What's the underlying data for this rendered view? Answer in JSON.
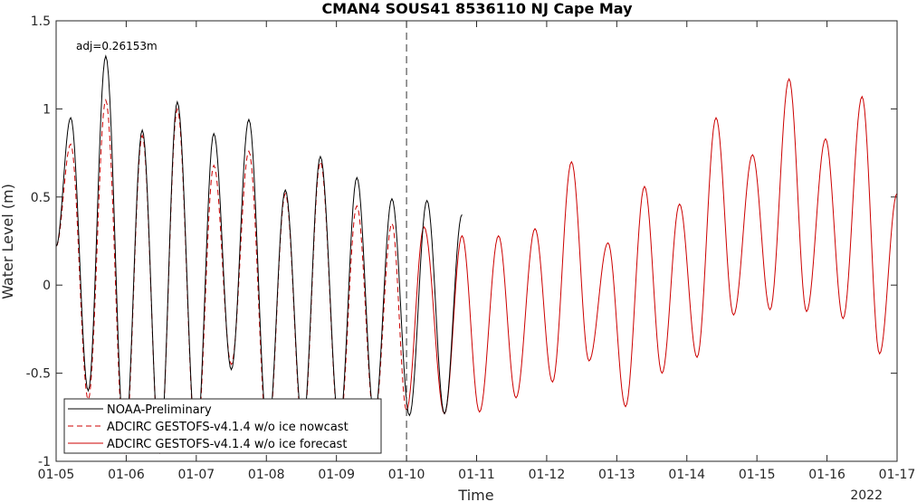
{
  "chart_data": {
    "type": "line",
    "title": "CMAN4 SOUS41 8536110 NJ Cape May",
    "xlabel": "Time",
    "ylabel": "Water Level (m)",
    "year_label": "2022",
    "x_tick_labels": [
      "01-05",
      "01-06",
      "01-07",
      "01-08",
      "01-09",
      "01-10",
      "01-11",
      "01-12",
      "01-13",
      "01-14",
      "01-15",
      "01-16",
      "01-17"
    ],
    "y_tick_labels": [
      "-1",
      "-0.5",
      "0",
      "0.5",
      "1",
      "1.5"
    ],
    "y_ticks": [
      -1,
      -0.5,
      0,
      0.5,
      1,
      1.5
    ],
    "xlim": [
      "2022-01-05",
      "2022-01-17"
    ],
    "ylim": [
      -1,
      1.5
    ],
    "grid": false,
    "legend_position": "bottom-left",
    "annotation": "adj=0.26153m",
    "nowcast_forecast_divider": "2022-01-10",
    "series": [
      {
        "name": "NOAA-Preliminary",
        "color": "#000000",
        "style": "solid",
        "extrema": [
          [
            "2022-01-05 00:00",
            0.22
          ],
          [
            "2022-01-05 05:00",
            0.95
          ],
          [
            "2022-01-05 11:00",
            -0.6
          ],
          [
            "2022-01-05 17:00",
            1.3
          ],
          [
            "2022-01-05 23:30",
            -0.9
          ],
          [
            "2022-01-06 05:30",
            0.88
          ],
          [
            "2022-01-06 11:30",
            -0.95
          ],
          [
            "2022-01-06 17:30",
            1.04
          ],
          [
            "2022-01-07 00:00",
            -0.9
          ],
          [
            "2022-01-07 06:00",
            0.86
          ],
          [
            "2022-01-07 12:00",
            -0.48
          ],
          [
            "2022-01-07 18:00",
            0.94
          ],
          [
            "2022-01-08 00:30",
            -0.85
          ],
          [
            "2022-01-08 06:30",
            0.54
          ],
          [
            "2022-01-08 12:30",
            -0.8
          ],
          [
            "2022-01-08 18:30",
            0.73
          ],
          [
            "2022-01-09 01:00",
            -0.8
          ],
          [
            "2022-01-09 07:00",
            0.61
          ],
          [
            "2022-01-09 13:00",
            -0.75
          ],
          [
            "2022-01-09 19:00",
            0.49
          ],
          [
            "2022-01-10 01:00",
            -0.74
          ],
          [
            "2022-01-10 07:00",
            0.48
          ],
          [
            "2022-01-10 13:00",
            -0.73
          ],
          [
            "2022-01-10 19:00",
            0.4
          ]
        ]
      },
      {
        "name": "ADCIRC GESTOFS-v4.1.4 w/o ice nowcast",
        "color": "#cc0000",
        "style": "dashed",
        "extrema": [
          [
            "2022-01-05 00:00",
            0.22
          ],
          [
            "2022-01-05 05:00",
            0.8
          ],
          [
            "2022-01-05 11:00",
            -0.65
          ],
          [
            "2022-01-05 17:00",
            1.05
          ],
          [
            "2022-01-05 23:30",
            -0.95
          ],
          [
            "2022-01-06 05:30",
            0.85
          ],
          [
            "2022-01-06 11:30",
            -0.95
          ],
          [
            "2022-01-06 17:30",
            1.0
          ],
          [
            "2022-01-07 00:00",
            -0.92
          ],
          [
            "2022-01-07 06:00",
            0.68
          ],
          [
            "2022-01-07 12:00",
            -0.45
          ],
          [
            "2022-01-07 18:00",
            0.76
          ],
          [
            "2022-01-08 00:30",
            -0.88
          ],
          [
            "2022-01-08 06:30",
            0.52
          ],
          [
            "2022-01-08 12:30",
            -0.83
          ],
          [
            "2022-01-08 18:30",
            0.7
          ],
          [
            "2022-01-09 01:00",
            -0.82
          ],
          [
            "2022-01-09 07:00",
            0.45
          ],
          [
            "2022-01-09 13:00",
            -0.76
          ],
          [
            "2022-01-09 19:00",
            0.35
          ],
          [
            "2022-01-10 00:00",
            -0.71
          ]
        ]
      },
      {
        "name": "ADCIRC GESTOFS-v4.1.4 w/o ice forecast",
        "color": "#cc0000",
        "style": "solid",
        "extrema": [
          [
            "2022-01-10 00:00",
            -0.71
          ],
          [
            "2022-01-10 06:00",
            0.33
          ],
          [
            "2022-01-10 13:00",
            -0.73
          ],
          [
            "2022-01-10 19:00",
            0.28
          ],
          [
            "2022-01-11 01:00",
            -0.72
          ],
          [
            "2022-01-11 07:30",
            0.28
          ],
          [
            "2022-01-11 13:30",
            -0.64
          ],
          [
            "2022-01-11 20:00",
            0.32
          ],
          [
            "2022-01-12 02:00",
            -0.55
          ],
          [
            "2022-01-12 08:30",
            0.7
          ],
          [
            "2022-01-12 14:30",
            -0.43
          ],
          [
            "2022-01-12 21:00",
            0.24
          ],
          [
            "2022-01-13 03:00",
            -0.69
          ],
          [
            "2022-01-13 09:30",
            0.56
          ],
          [
            "2022-01-13 15:30",
            -0.5
          ],
          [
            "2022-01-13 21:30",
            0.46
          ],
          [
            "2022-01-14 03:30",
            -0.41
          ],
          [
            "2022-01-14 10:00",
            0.95
          ],
          [
            "2022-01-14 16:00",
            -0.17
          ],
          [
            "2022-01-14 22:30",
            0.74
          ],
          [
            "2022-01-15 04:30",
            -0.14
          ],
          [
            "2022-01-15 11:00",
            1.17
          ],
          [
            "2022-01-15 17:00",
            -0.15
          ],
          [
            "2022-01-15 23:30",
            0.83
          ],
          [
            "2022-01-16 05:30",
            -0.19
          ],
          [
            "2022-01-16 12:00",
            1.07
          ],
          [
            "2022-01-16 18:00",
            -0.39
          ],
          [
            "2022-01-17 00:00",
            0.52
          ]
        ]
      }
    ]
  }
}
